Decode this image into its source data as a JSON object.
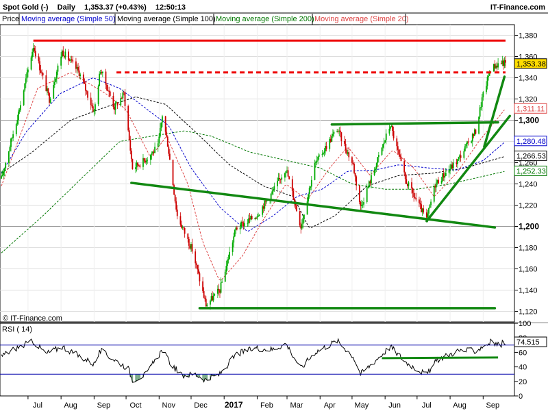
{
  "header": {
    "instrument": "Spot Gold (-)",
    "timeframe": "Daily",
    "quote": "1,353.37 (+0.43%)",
    "time": "12:50:13",
    "brand": "IT-Finance.com"
  },
  "legend": [
    {
      "label": "Price",
      "color": "#000000"
    },
    {
      "label": "Moving average (Simple 50)",
      "color": "#0000cc"
    },
    {
      "label": "Moving average (Simple 100)",
      "color": "#000000"
    },
    {
      "label": "Moving average (Simple 200)",
      "color": "#007700"
    },
    {
      "label": "Moving average (Simple 20)",
      "color": "#dd4444"
    }
  ],
  "watermark": "© IT-Finance.com",
  "rsi_label": "RSI ( 14)",
  "colors": {
    "up_candle": "#00aa00",
    "down_candle": "#cc0000",
    "resistance": "#ee0000",
    "trendline": "#118811",
    "frame": "#000000",
    "grid": "#dddddd"
  },
  "chart_data": {
    "type": "line",
    "price_axis": {
      "ylim": [
        1110,
        1390
      ],
      "ticks": [
        1120,
        1140,
        1160,
        1180,
        1200,
        1220,
        1240,
        1260,
        1280,
        1300,
        1320,
        1340,
        1360,
        1380
      ],
      "tick_labels": [
        "1,120",
        "1,140",
        "1,160",
        "1,180",
        "1,200",
        "1,220",
        "1,240",
        "1,260",
        "1,280",
        "1,300",
        "1,320",
        "1,340",
        "1,360",
        "1,380"
      ],
      "bold_ticks": [
        1200,
        1300
      ]
    },
    "x_axis": {
      "labels": [
        "Jul",
        "Aug",
        "Sep",
        "Oct",
        "Nov",
        "Dec",
        "2017",
        "Feb",
        "Mar",
        "Apr",
        "May",
        "Jun",
        "Jul",
        "Aug",
        "Sep"
      ],
      "bold": [
        "2017"
      ],
      "ticks": [
        "2016-07-01",
        "2016-08-01",
        "2016-09-01",
        "2016-10-01",
        "2016-11-01",
        "2016-12-01",
        "2017-01-01",
        "2017-02-01",
        "2017-03-01",
        "2017-04-01",
        "2017-05-01",
        "2017-06-01",
        "2017-07-01",
        "2017-08-01",
        "2017-09-01"
      ]
    },
    "date_range": [
      "2016-06-06",
      "2017-09-22"
    ],
    "price_anchors": [
      [
        "2016-06-06",
        1245
      ],
      [
        "2016-06-24",
        1315
      ],
      [
        "2016-07-06",
        1370
      ],
      [
        "2016-07-21",
        1320
      ],
      [
        "2016-08-02",
        1365
      ],
      [
        "2016-08-18",
        1345
      ],
      [
        "2016-09-01",
        1308
      ],
      [
        "2016-09-07",
        1348
      ],
      [
        "2016-09-20",
        1312
      ],
      [
        "2016-09-29",
        1325
      ],
      [
        "2016-10-07",
        1255
      ],
      [
        "2016-10-18",
        1262
      ],
      [
        "2016-10-31",
        1275
      ],
      [
        "2016-11-04",
        1305
      ],
      [
        "2016-11-09",
        1278
      ],
      [
        "2016-11-18",
        1210
      ],
      [
        "2016-12-02",
        1178
      ],
      [
        "2016-12-15",
        1126
      ],
      [
        "2016-12-28",
        1140
      ],
      [
        "2017-01-12",
        1198
      ],
      [
        "2017-01-31",
        1210
      ],
      [
        "2017-02-14",
        1230
      ],
      [
        "2017-02-28",
        1255
      ],
      [
        "2017-03-14",
        1200
      ],
      [
        "2017-03-27",
        1258
      ],
      [
        "2017-04-17",
        1292
      ],
      [
        "2017-05-02",
        1258
      ],
      [
        "2017-05-09",
        1218
      ],
      [
        "2017-06-06",
        1296
      ],
      [
        "2017-06-20",
        1244
      ],
      [
        "2017-07-10",
        1206
      ],
      [
        "2017-07-18",
        1240
      ],
      [
        "2017-08-08",
        1262
      ],
      [
        "2017-08-25",
        1290
      ],
      [
        "2017-08-31",
        1320
      ],
      [
        "2017-09-08",
        1349
      ],
      [
        "2017-09-19",
        1355
      ],
      [
        "2017-09-22",
        1353
      ]
    ],
    "sma20": [
      [
        "2016-06-06",
        1238
      ],
      [
        "2016-07-10",
        1330
      ],
      [
        "2016-08-10",
        1345
      ],
      [
        "2016-09-12",
        1325
      ],
      [
        "2016-10-01",
        1310
      ],
      [
        "2016-10-24",
        1265
      ],
      [
        "2016-11-08",
        1285
      ],
      [
        "2016-11-28",
        1240
      ],
      [
        "2016-12-12",
        1185
      ],
      [
        "2016-12-28",
        1148
      ],
      [
        "2017-01-18",
        1172
      ],
      [
        "2017-02-06",
        1205
      ],
      [
        "2017-02-28",
        1240
      ],
      [
        "2017-03-20",
        1225
      ],
      [
        "2017-04-10",
        1255
      ],
      [
        "2017-04-27",
        1275
      ],
      [
        "2017-05-18",
        1248
      ],
      [
        "2017-06-08",
        1272
      ],
      [
        "2017-06-28",
        1255
      ],
      [
        "2017-07-17",
        1228
      ],
      [
        "2017-08-07",
        1250
      ],
      [
        "2017-08-28",
        1280
      ],
      [
        "2017-09-22",
        1311
      ]
    ],
    "sma50": [
      [
        "2016-06-06",
        1250
      ],
      [
        "2016-06-30",
        1290
      ],
      [
        "2016-07-31",
        1325
      ],
      [
        "2016-08-31",
        1340
      ],
      [
        "2016-09-25",
        1330
      ],
      [
        "2016-10-21",
        1310
      ],
      [
        "2016-11-10",
        1295
      ],
      [
        "2016-12-01",
        1255
      ],
      [
        "2016-12-28",
        1218
      ],
      [
        "2017-01-23",
        1195
      ],
      [
        "2017-02-16",
        1210
      ],
      [
        "2017-03-10",
        1228
      ],
      [
        "2017-04-03",
        1235
      ],
      [
        "2017-04-27",
        1252
      ],
      [
        "2017-05-22",
        1253
      ],
      [
        "2017-06-14",
        1258
      ],
      [
        "2017-07-12",
        1255
      ],
      [
        "2017-08-07",
        1253
      ],
      [
        "2017-09-01",
        1262
      ],
      [
        "2017-09-22",
        1280
      ]
    ],
    "sma100": [
      [
        "2016-06-06",
        1250
      ],
      [
        "2016-07-05",
        1270
      ],
      [
        "2016-08-10",
        1300
      ],
      [
        "2016-09-05",
        1310
      ],
      [
        "2016-10-10",
        1322
      ],
      [
        "2016-11-07",
        1315
      ],
      [
        "2016-12-04",
        1290
      ],
      [
        "2017-01-06",
        1258
      ],
      [
        "2017-02-07",
        1238
      ],
      [
        "2017-03-07",
        1228
      ],
      [
        "2017-03-22",
        1198
      ],
      [
        "2017-04-15",
        1210
      ],
      [
        "2017-05-15",
        1238
      ],
      [
        "2017-06-14",
        1248
      ],
      [
        "2017-07-15",
        1250
      ],
      [
        "2017-08-15",
        1255
      ],
      [
        "2017-09-22",
        1266
      ]
    ],
    "sma200": [
      [
        "2016-06-06",
        1175
      ],
      [
        "2016-07-15",
        1210
      ],
      [
        "2016-08-20",
        1245
      ],
      [
        "2016-09-25",
        1280
      ],
      [
        "2016-10-25",
        1285
      ],
      [
        "2016-11-25",
        1290
      ],
      [
        "2016-12-20",
        1285
      ],
      [
        "2017-01-25",
        1270
      ],
      [
        "2017-03-01",
        1262
      ],
      [
        "2017-04-01",
        1255
      ],
      [
        "2017-05-01",
        1240
      ],
      [
        "2017-06-01",
        1235
      ],
      [
        "2017-07-01",
        1235
      ],
      [
        "2017-08-01",
        1240
      ],
      [
        "2017-09-22",
        1252
      ]
    ],
    "rsi": {
      "ylim": [
        0,
        100
      ],
      "ticks": [
        0,
        20,
        40,
        60,
        80,
        100
      ],
      "levels": [
        30,
        70
      ],
      "last_value": "74.515",
      "anchors": [
        [
          "2016-06-06",
          55
        ],
        [
          "2016-06-20",
          66
        ],
        [
          "2016-07-06",
          75
        ],
        [
          "2016-07-18",
          58
        ],
        [
          "2016-08-02",
          68
        ],
        [
          "2016-08-18",
          55
        ],
        [
          "2016-09-01",
          44
        ],
        [
          "2016-09-07",
          62
        ],
        [
          "2016-09-20",
          50
        ],
        [
          "2016-10-03",
          38
        ],
        [
          "2016-10-07",
          22
        ],
        [
          "2016-10-20",
          30
        ],
        [
          "2016-11-04",
          64
        ],
        [
          "2016-11-10",
          48
        ],
        [
          "2016-11-22",
          28
        ],
        [
          "2016-12-05",
          30
        ],
        [
          "2016-12-15",
          22
        ],
        [
          "2016-12-28",
          30
        ],
        [
          "2017-01-13",
          58
        ],
        [
          "2017-01-31",
          66
        ],
        [
          "2017-02-15",
          64
        ],
        [
          "2017-02-28",
          72
        ],
        [
          "2017-03-14",
          38
        ],
        [
          "2017-03-27",
          60
        ],
        [
          "2017-04-17",
          76
        ],
        [
          "2017-05-02",
          55
        ],
        [
          "2017-05-09",
          30
        ],
        [
          "2017-06-06",
          68
        ],
        [
          "2017-06-21",
          46
        ],
        [
          "2017-07-10",
          29
        ],
        [
          "2017-07-20",
          50
        ],
        [
          "2017-08-08",
          62
        ],
        [
          "2017-08-25",
          62
        ],
        [
          "2017-08-31",
          68
        ],
        [
          "2017-09-08",
          74
        ],
        [
          "2017-09-16",
          70
        ],
        [
          "2017-09-22",
          74.5
        ]
      ]
    },
    "value_tags": [
      {
        "value": 1353.38,
        "label": "1,353.38",
        "fill": "#ffdd00",
        "color": "#000000"
      },
      {
        "value": 1311.11,
        "label": "1,311.11",
        "fill": "#ffffff",
        "color": "#dd4444"
      },
      {
        "value": 1280.48,
        "label": "1,280.48",
        "fill": "#ffffff",
        "color": "#0000cc"
      },
      {
        "value": 1266.53,
        "label": "1,266.53",
        "fill": "#ffffff",
        "color": "#000000"
      },
      {
        "value": 1252.33,
        "label": "1,252.33",
        "fill": "#ffffff",
        "color": "#007700"
      }
    ],
    "annotations": {
      "resistance_solid": {
        "from": [
          "2016-07-06",
          1375
        ],
        "to": [
          "2017-09-22",
          1375
        ],
        "color": "#ee0000"
      },
      "resistance_dashed": {
        "from": [
          "2016-09-22",
          1345
        ],
        "to": [
          "2017-09-22",
          1345
        ],
        "color": "#ee0000"
      },
      "trendlines": [
        {
          "from": [
            "2016-10-06",
            1241
          ],
          "to": [
            "2017-09-12",
            1199
          ]
        },
        {
          "from": [
            "2017-04-12",
            1296
          ],
          "to": [
            "2017-09-15",
            1298
          ]
        },
        {
          "from": [
            "2016-12-09",
            1123
          ],
          "to": [
            "2017-09-12",
            1123
          ]
        },
        {
          "from": [
            "2017-07-10",
            1205
          ],
          "to": [
            "2017-09-26",
            1304
          ]
        },
        {
          "from": [
            "2017-09-02",
            1275
          ],
          "to": [
            "2017-09-21",
            1341
          ]
        }
      ],
      "rsi_trendline": {
        "from": [
          "2017-05-29",
          52
        ],
        "to": [
          "2017-09-15",
          53
        ]
      }
    }
  }
}
